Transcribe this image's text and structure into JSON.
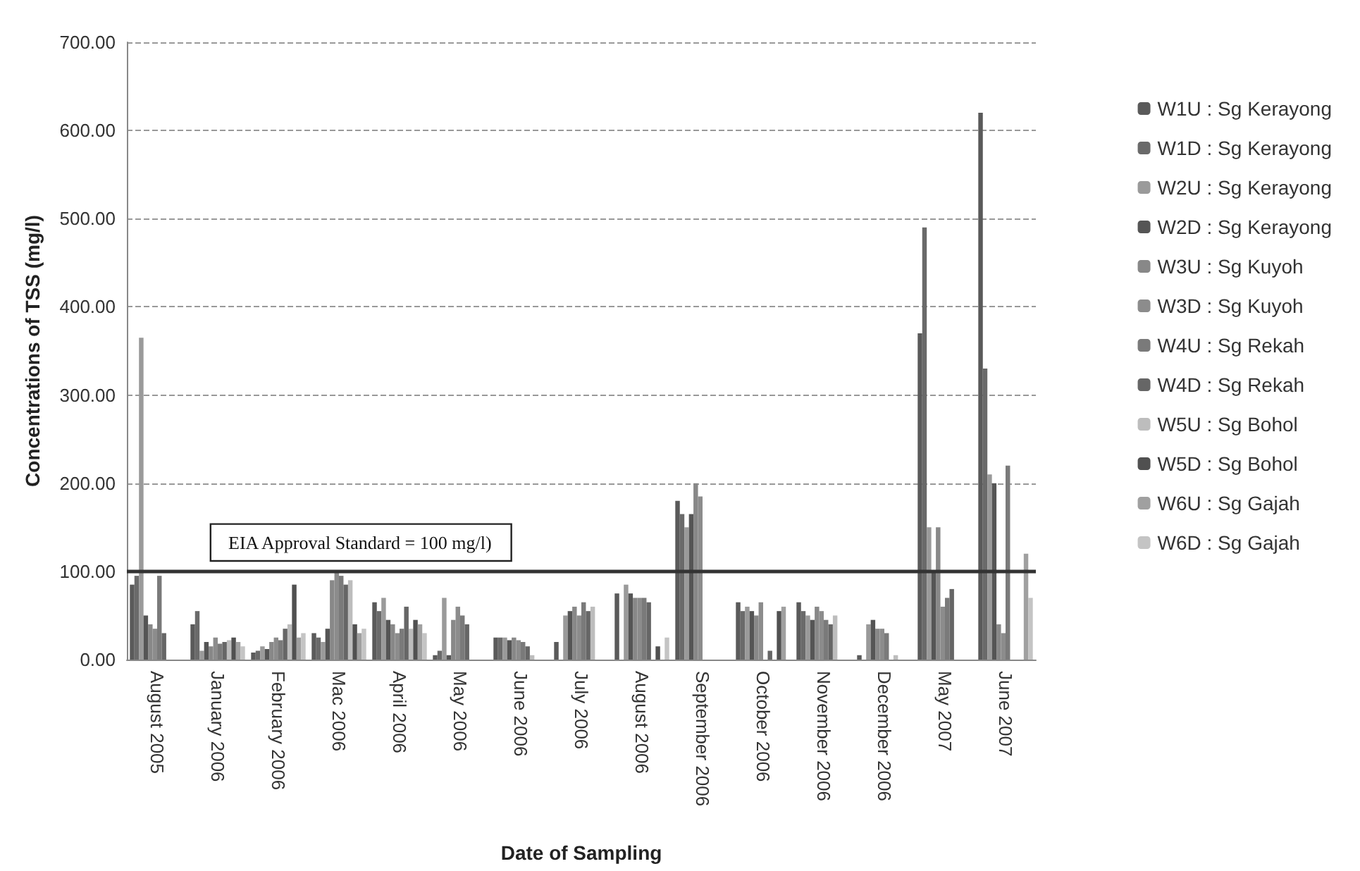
{
  "chart_data": {
    "type": "bar",
    "xlabel": "Date of Sampling",
    "ylabel": "Concentrations of TSS (mg/l)",
    "categories": [
      "August 2005",
      "January 2006",
      "February 2006",
      "Mac 2006",
      "April 2006",
      "May 2006",
      "June 2006",
      "July 2006",
      "August 2006",
      "September 2006",
      "October 2006",
      "November 2006",
      "December 2006",
      "May 2007",
      "June 2007"
    ],
    "series": [
      {
        "name": "W1U : Sg Kerayong",
        "color": "#5a5a5a",
        "values": [
          85,
          40,
          8,
          30,
          65,
          5,
          25,
          20,
          75,
          180,
          65,
          65,
          5,
          370,
          620
        ]
      },
      {
        "name": "W1D : Sg Kerayong",
        "color": "#6a6a6a",
        "values": [
          95,
          55,
          10,
          25,
          55,
          10,
          25,
          null,
          null,
          165,
          55,
          55,
          null,
          490,
          330
        ]
      },
      {
        "name": "W2U : Sg Kerayong",
        "color": "#9a9a9a",
        "values": [
          365,
          10,
          15,
          20,
          70,
          70,
          25,
          50,
          85,
          150,
          60,
          50,
          40,
          150,
          210
        ]
      },
      {
        "name": "W2D : Sg Kerayong",
        "color": "#555555",
        "values": [
          50,
          20,
          12,
          35,
          45,
          5,
          22,
          55,
          75,
          165,
          55,
          45,
          45,
          100,
          200
        ]
      },
      {
        "name": "W3U : Sg Kuyoh",
        "color": "#888888",
        "values": [
          40,
          15,
          20,
          90,
          40,
          45,
          25,
          60,
          70,
          200,
          50,
          60,
          35,
          150,
          40
        ]
      },
      {
        "name": "W3D : Sg Kuyoh",
        "color": "#8c8c8c",
        "values": [
          35,
          25,
          25,
          100,
          30,
          60,
          22,
          50,
          70,
          185,
          65,
          55,
          35,
          60,
          30
        ]
      },
      {
        "name": "W4U : Sg Rekah",
        "color": "#7a7a7a",
        "values": [
          95,
          18,
          22,
          95,
          35,
          50,
          20,
          65,
          70,
          null,
          null,
          45,
          30,
          70,
          220
        ]
      },
      {
        "name": "W4D : Sg Rekah",
        "color": "#666666",
        "values": [
          30,
          20,
          35,
          85,
          60,
          40,
          15,
          55,
          65,
          null,
          10,
          40,
          null,
          80,
          null
        ]
      },
      {
        "name": "W5U : Sg Bohol",
        "color": "#bdbdbd",
        "values": [
          null,
          22,
          40,
          90,
          35,
          null,
          5,
          60,
          null,
          null,
          null,
          50,
          5,
          null,
          null
        ]
      },
      {
        "name": "W5D : Sg Bohol",
        "color": "#505050",
        "values": [
          null,
          25,
          85,
          40,
          45,
          null,
          null,
          null,
          15,
          null,
          55,
          null,
          null,
          null,
          null
        ]
      },
      {
        "name": "W6U : Sg Gajah",
        "color": "#a0a0a0",
        "values": [
          null,
          20,
          25,
          30,
          40,
          null,
          null,
          null,
          null,
          null,
          60,
          null,
          null,
          null,
          120
        ]
      },
      {
        "name": "W6D : Sg Gajah",
        "color": "#c4c4c4",
        "values": [
          null,
          15,
          30,
          35,
          30,
          null,
          null,
          null,
          25,
          null,
          null,
          null,
          null,
          null,
          70
        ]
      }
    ],
    "ylim": [
      0,
      700
    ],
    "yticks": [
      {
        "value": 0,
        "label": "0.00"
      },
      {
        "value": 100,
        "label": "100.00"
      },
      {
        "value": 200,
        "label": "200.00"
      },
      {
        "value": 300,
        "label": "300.00"
      },
      {
        "value": 400,
        "label": "400.00"
      },
      {
        "value": 500,
        "label": "500.00"
      },
      {
        "value": 600,
        "label": "600.00"
      },
      {
        "value": 700,
        "label": "700.00"
      }
    ],
    "grid": "y",
    "legend": "right",
    "ref_lines": [
      {
        "axis": "y",
        "value": 100,
        "label": "EIA Approval Standard = 100 mg/l)",
        "color": "#333333"
      }
    ]
  }
}
